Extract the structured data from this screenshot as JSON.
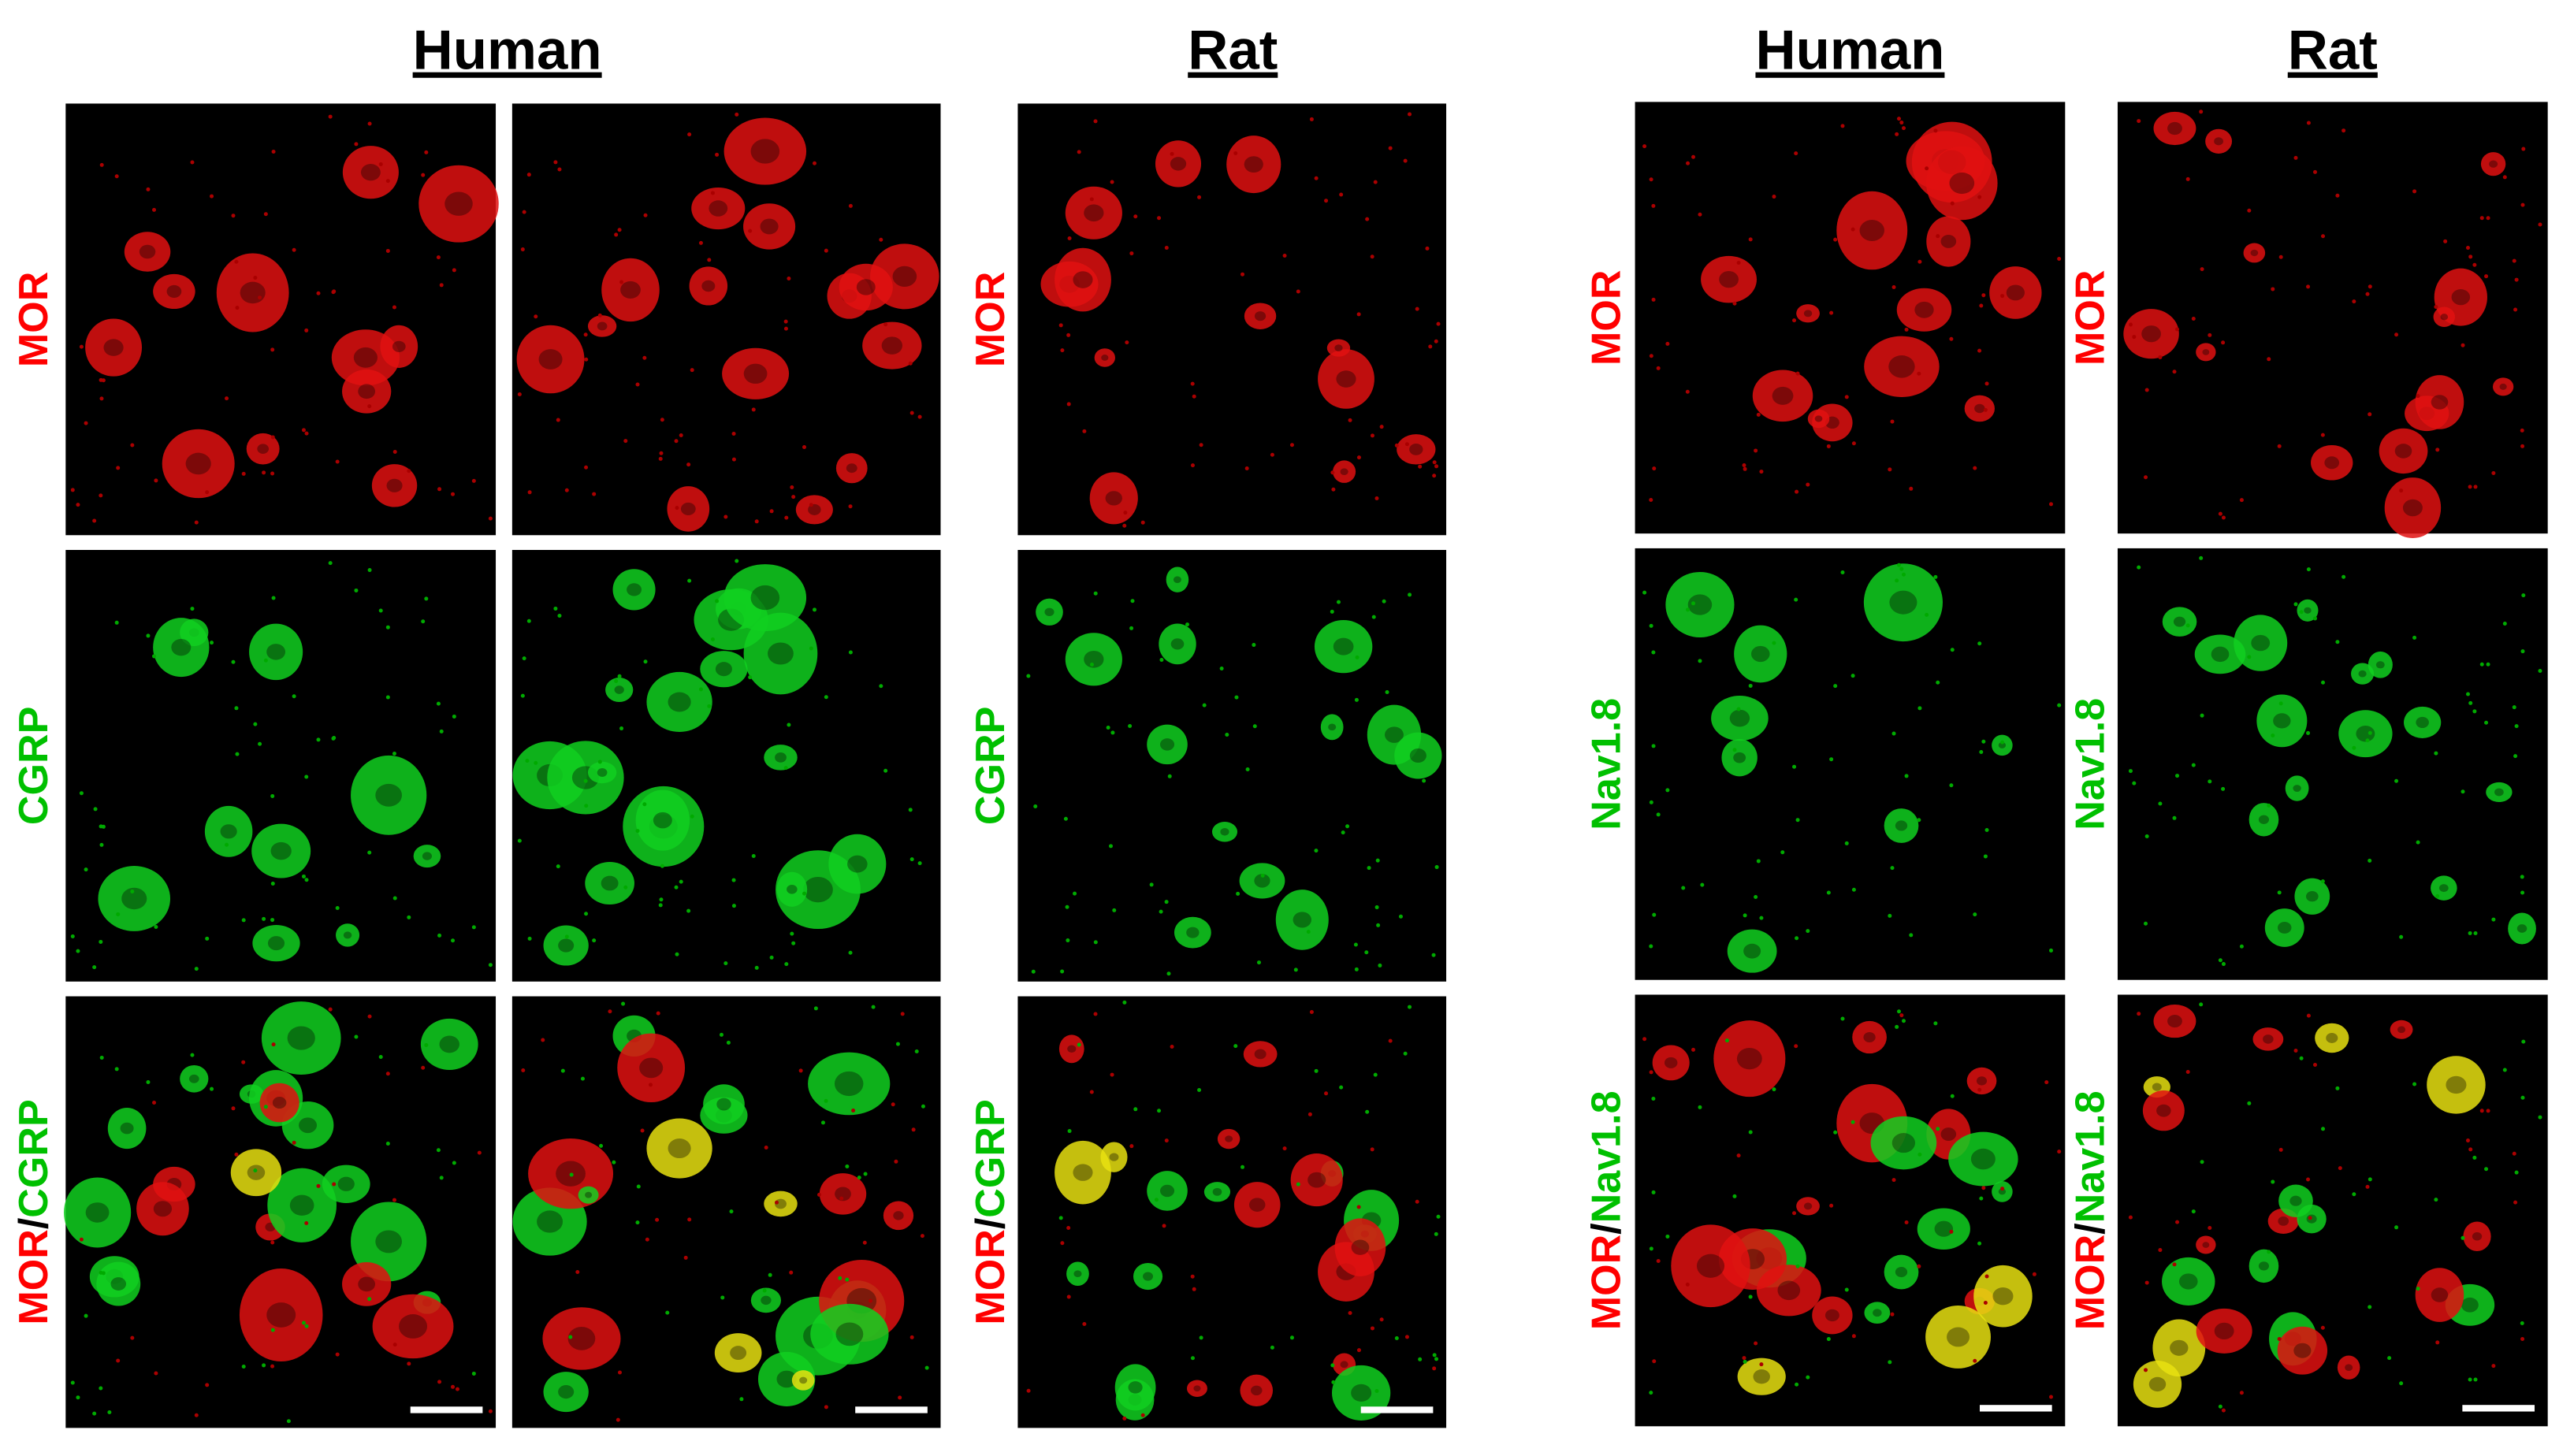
{
  "figure": {
    "headers": [
      "Human",
      "Rat",
      "Human",
      "Rat"
    ],
    "label_columns": [
      [
        [
          {
            "text": "MOR",
            "color": "#ff0000"
          }
        ],
        [
          {
            "text": "CGRP",
            "color": "#00c000"
          }
        ],
        [
          {
            "text": "MOR",
            "color": "#ff0000"
          },
          {
            "text": "/",
            "color": "#000000"
          },
          {
            "text": "CGRP",
            "color": "#00c000"
          }
        ]
      ],
      [
        [
          {
            "text": "MOR",
            "color": "#ff0000"
          }
        ],
        [
          {
            "text": "CGRP",
            "color": "#00c000"
          }
        ],
        [
          {
            "text": "MOR",
            "color": "#ff0000"
          },
          {
            "text": "/",
            "color": "#000000"
          },
          {
            "text": "CGRP",
            "color": "#00c000"
          }
        ]
      ],
      [
        [
          {
            "text": "MOR",
            "color": "#ff0000"
          }
        ],
        [
          {
            "text": "Nav1.8",
            "color": "#00c000"
          }
        ],
        [
          {
            "text": "MOR",
            "color": "#ff0000"
          },
          {
            "text": "/",
            "color": "#000000"
          },
          {
            "text": "Nav1.8",
            "color": "#00c000"
          }
        ]
      ],
      [
        [
          {
            "text": "MOR",
            "color": "#ff0000"
          }
        ],
        [
          {
            "text": "Nav1.8",
            "color": "#00c000"
          }
        ],
        [
          {
            "text": "MOR",
            "color": "#ff0000"
          },
          {
            "text": "/",
            "color": "#000000"
          },
          {
            "text": "Nav1.8",
            "color": "#00c000"
          }
        ]
      ]
    ]
  }
}
